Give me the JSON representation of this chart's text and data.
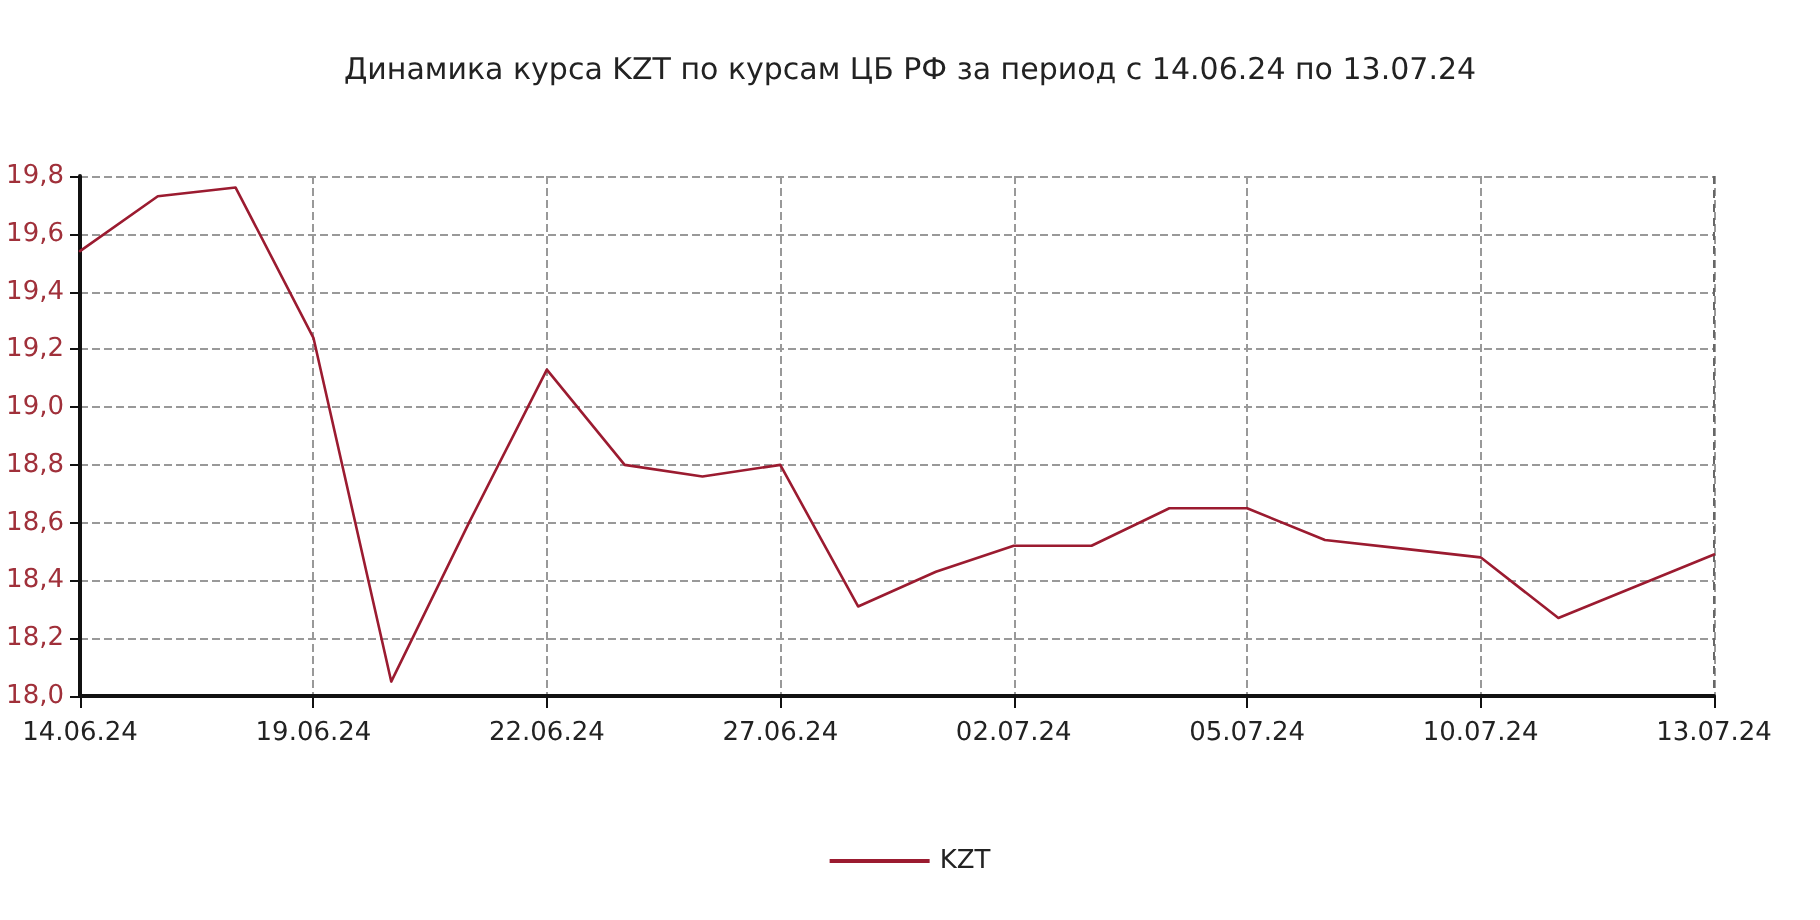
{
  "chart_data": {
    "type": "line",
    "title": "Динамика курса KZT по курсам ЦБ РФ за период с 14.06.24 по 13.07.24",
    "categories": [
      "14.06.24",
      null,
      null,
      "19.06.24",
      null,
      null,
      "22.06.24",
      null,
      null,
      "27.06.24",
      null,
      null,
      "02.07.24",
      null,
      null,
      "05.07.24",
      null,
      null,
      "10.07.24",
      null,
      null,
      "13.07.24"
    ],
    "series": [
      {
        "name": "KZT",
        "color": "#9b1b30",
        "values": [
          19.54,
          19.73,
          19.76,
          19.24,
          18.05,
          18.6,
          19.13,
          18.8,
          18.76,
          18.8,
          18.31,
          18.43,
          18.52,
          18.52,
          18.65,
          18.65,
          18.54,
          18.51,
          18.48,
          18.27,
          18.38,
          18.49
        ]
      }
    ],
    "ylim": [
      18.0,
      19.8
    ],
    "yticks": [
      {
        "value": 18.0,
        "label": "18,0"
      },
      {
        "value": 18.2,
        "label": "18,2"
      },
      {
        "value": 18.4,
        "label": "18,4"
      },
      {
        "value": 18.6,
        "label": "18,6"
      },
      {
        "value": 18.8,
        "label": "18,8"
      },
      {
        "value": 19.0,
        "label": "19,0"
      },
      {
        "value": 19.2,
        "label": "19,2"
      },
      {
        "value": 19.4,
        "label": "19,4"
      },
      {
        "value": 19.6,
        "label": "19,6"
      },
      {
        "value": 19.8,
        "label": "19,8"
      }
    ],
    "grid": true,
    "legend": "bottom",
    "marker": "none",
    "line_style": "solid"
  }
}
